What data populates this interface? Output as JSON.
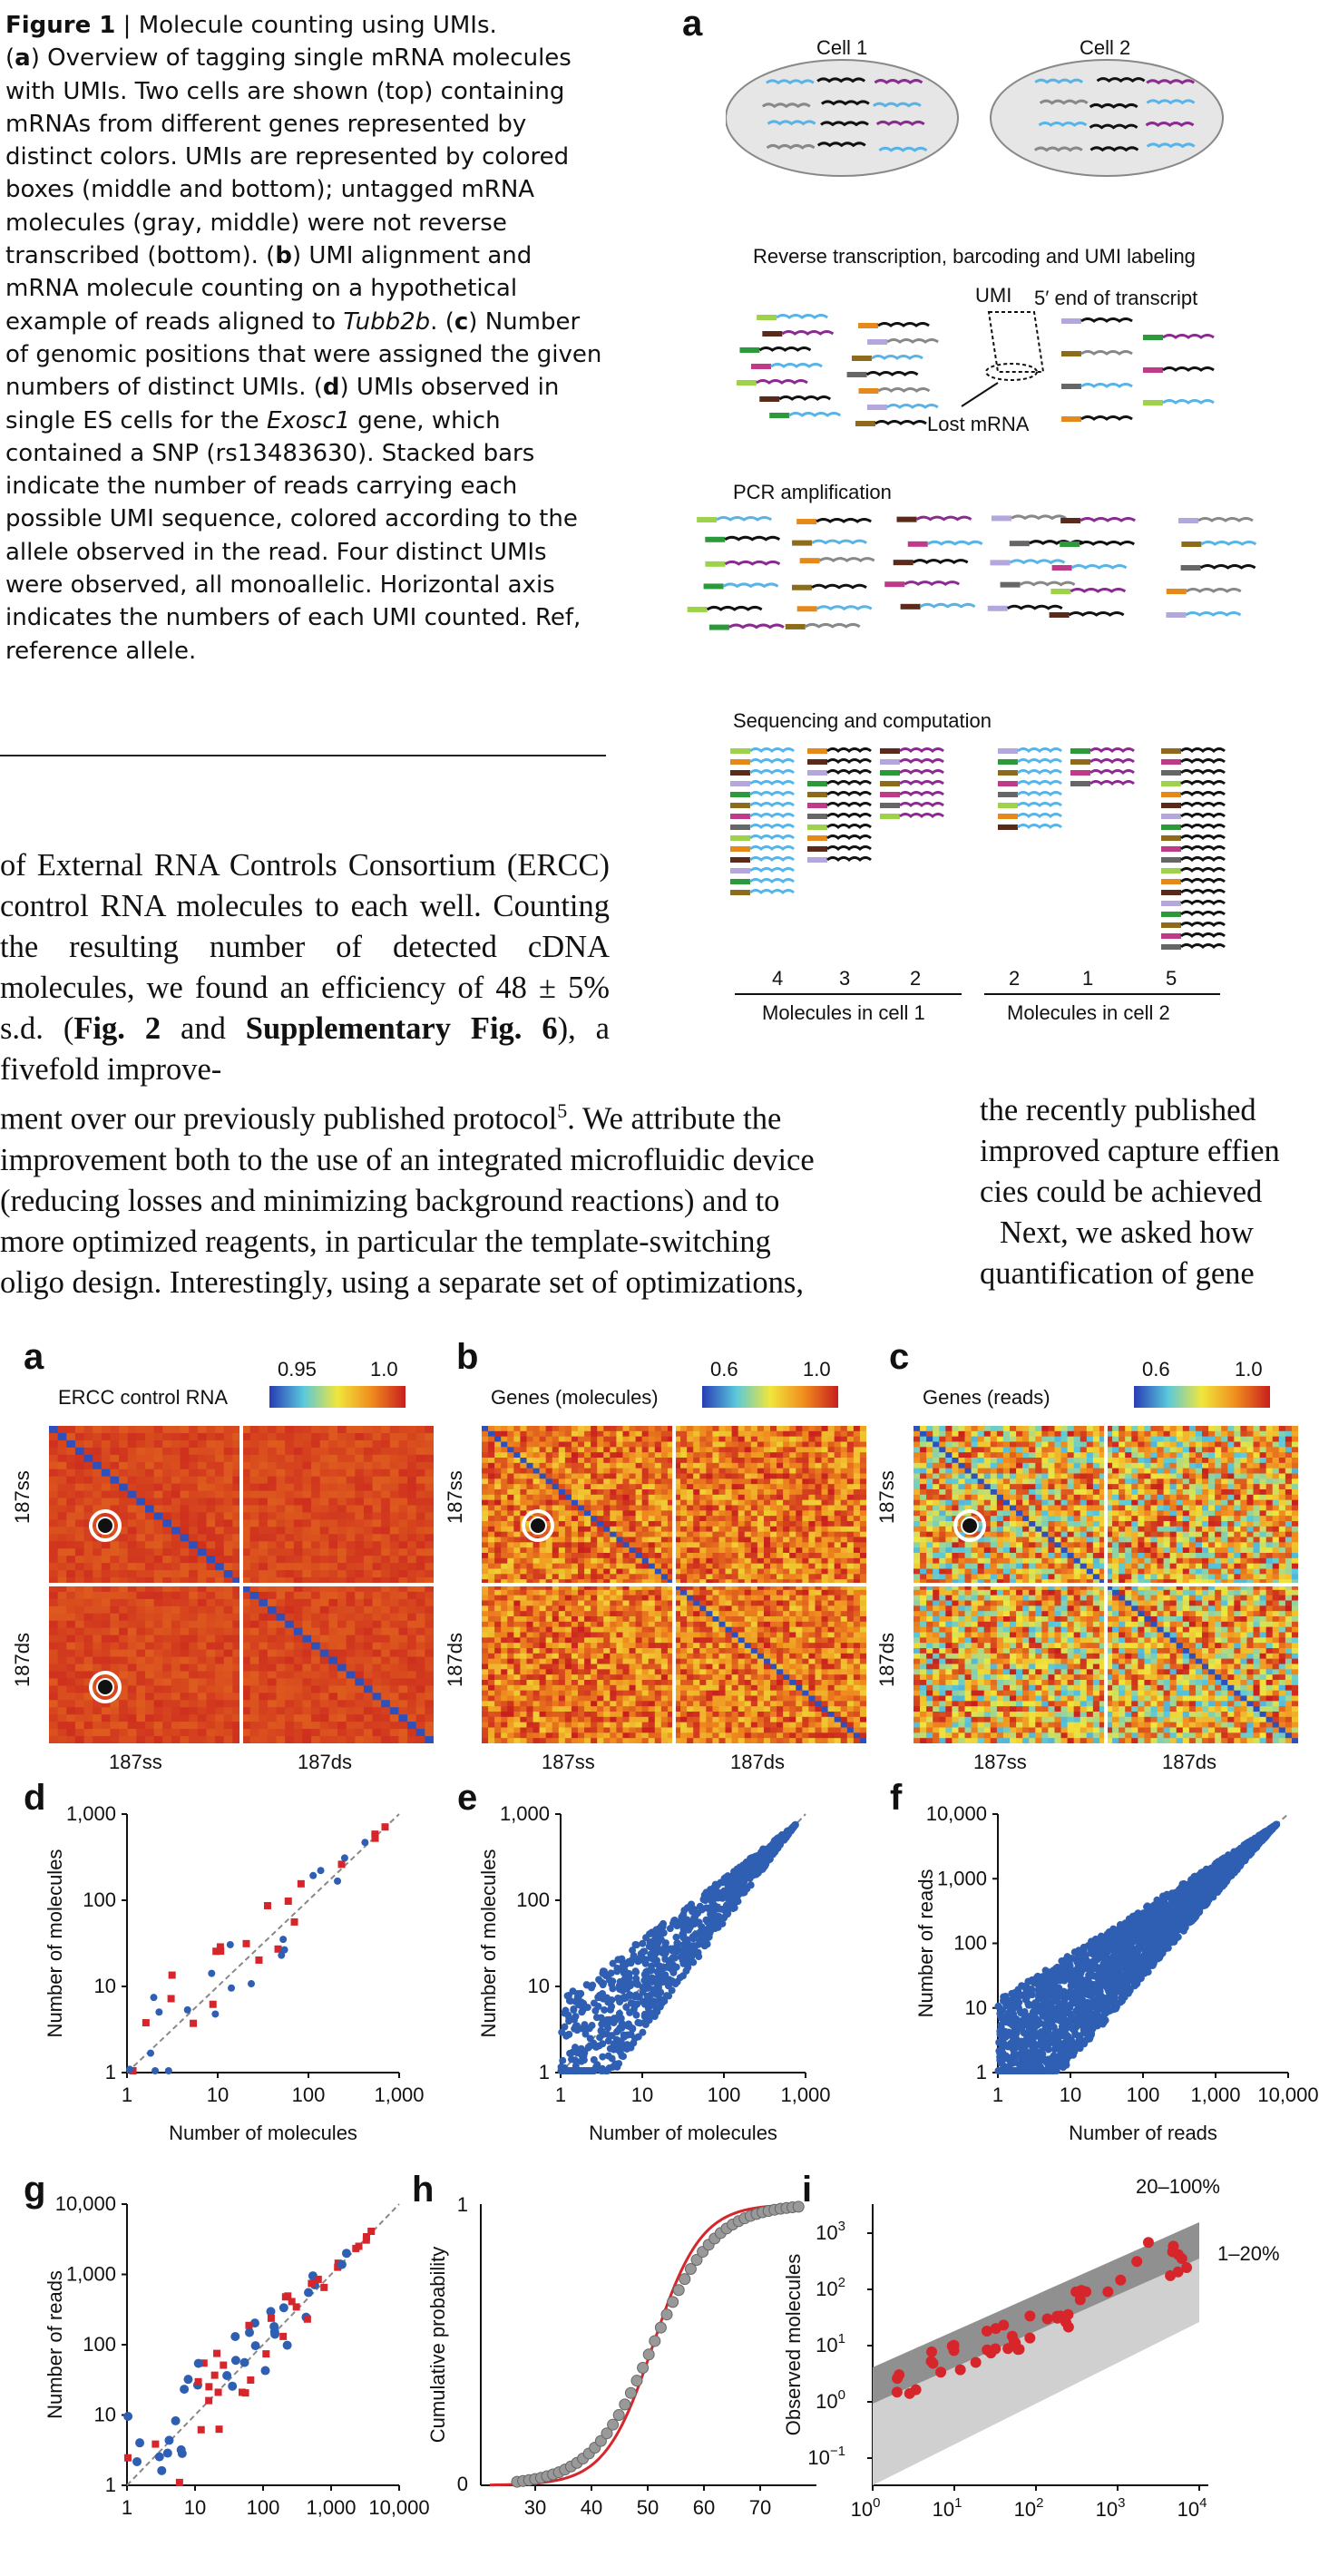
{
  "caption": {
    "heading": "Figure 1",
    "title": "Molecule counting using UMIs.",
    "a_text": ") Overview of tagging single mRNA molecules with UMIs. Two cells are shown (top) containing mRNAs from different genes represented by distinct colors. UMIs are represented by colored boxes (middle and bottom); untagged mRNA molecules (gray, middle) were not reverse transcribed (bottom). (",
    "b_text": ") UMI alignment and mRNA molecule counting on a hypothetical example of reads aligned to ",
    "b_gene": "Tubb2b",
    "c_text": ". (",
    "c_body": ") Number of genomic positions that were assigned the given numbers of distinct UMIs. (",
    "d_body": ") UMIs observed in single ES cells for the ",
    "d_gene": "Exosc1",
    "d_rest": " gene, which contained a SNP (rs13483630). Stacked bars indicate the number of reads carrying each possible UMI sequence, colored according to the allele observed in the read. Four distinct UMIs were observed, all monoallelic. Horizontal axis indicates the numbers of each UMI counted. Ref, reference allele."
  },
  "body": {
    "left_col": "of External RNA Controls Consortium (ERCC) control RNA molecules to each well. Counting the resulting number of detected cDNA molecules, we found an efficiency of 48 ± 5% s.d. (",
    "fig2_ref": "Fig. 2",
    "and": " and ",
    "supp_ref": "Supplementary Fig. 6",
    "after_ref": "), a fivefold improve-",
    "full_line_1": "ment over our previously published protocol",
    "sup5": "5",
    "full_line_1b": ". We attribute the",
    "full_line_2": "improvement both to the use of an integrated microfluidic device",
    "full_line_3": "(reducing losses and minimizing background reactions) and to",
    "full_line_4": "more optimized reagents, in particular the template-switching",
    "full_line_5": "oligo design. Interestingly, using a separate set of optimizations,",
    "right_1": "the recently published",
    "right_2": "improved capture effien",
    "right_3": "cies could be achieved",
    "right_4": "Next, we asked how",
    "right_5": "quantification of gene"
  },
  "fig1a": {
    "letter": "a",
    "cell1": "Cell 1",
    "cell2": "Cell 2",
    "rt_label": "Reverse transcription, barcoding and UMI labeling",
    "umi": "UMI",
    "five_prime": "5′ end of transcript",
    "lost": "Lost mRNA",
    "pcr": "PCR amplification",
    "seq": "Sequencing and computation",
    "counts": [
      "4",
      "3",
      "2",
      "2",
      "1",
      "5"
    ],
    "mol_cell1": "Molecules in cell 1",
    "mol_cell2": "Molecules in cell 2"
  },
  "fig2": {
    "a": {
      "letter": "a",
      "title": "ERCC control RNA",
      "scale_min": "0.95",
      "scale_max": "1.0",
      "row1": "187ss",
      "row2": "187ds",
      "col1": "187ss",
      "col2": "187ds"
    },
    "b": {
      "letter": "b",
      "title": "Genes (molecules)",
      "scale_min": "0.6",
      "scale_max": "1.0",
      "row1": "187ss",
      "row2": "187ds",
      "col1": "187ss",
      "col2": "187ds"
    },
    "c": {
      "letter": "c",
      "title": "Genes (reads)",
      "scale_min": "0.6",
      "scale_max": "1.0",
      "row1": "187ss",
      "row2": "187ds",
      "col1": "187ss",
      "col2": "187ds"
    },
    "d": {
      "letter": "d",
      "ylabel": "Number of molecules",
      "xlabel": "Number of molecules",
      "yticks": [
        "1",
        "10",
        "100",
        "1,000"
      ],
      "xticks": [
        "1",
        "10",
        "100",
        "1,000"
      ]
    },
    "e": {
      "letter": "e",
      "ylabel": "Number of molecules",
      "xlabel": "Number of molecules",
      "yticks": [
        "1",
        "10",
        "100",
        "1,000"
      ],
      "xticks": [
        "1",
        "10",
        "100",
        "1,000"
      ]
    },
    "f": {
      "letter": "f",
      "ylabel": "Number of reads",
      "xlabel": "Number of reads",
      "yticks": [
        "1",
        "10",
        "100",
        "1,000",
        "10,000"
      ],
      "xticks": [
        "1",
        "10",
        "100",
        "1,000",
        "10,000"
      ]
    },
    "g": {
      "letter": "g",
      "ylabel": "Number of reads",
      "yticks": [
        "1",
        "10",
        "100",
        "1,000",
        "10,000"
      ],
      "xticks": [
        "1",
        "10",
        "100",
        "1,000",
        "10,000"
      ]
    },
    "h": {
      "letter": "h",
      "ylabel": "Cumulative probability",
      "y1": "1",
      "y0": "0",
      "xticks": [
        "30",
        "40",
        "50",
        "60",
        "70"
      ]
    },
    "i": {
      "letter": "i",
      "ylabel": "Observed molecules",
      "band1": "20–100%",
      "band2": "1–20%",
      "ytick_base": "10",
      "yexp": [
        "−1",
        "0",
        "1",
        "2",
        "3"
      ],
      "xexp": [
        "0",
        "1",
        "2",
        "3",
        "4"
      ]
    }
  },
  "colors": {
    "red": "#d7262b",
    "blue": "#2f5fb3",
    "gray": "#999999"
  }
}
